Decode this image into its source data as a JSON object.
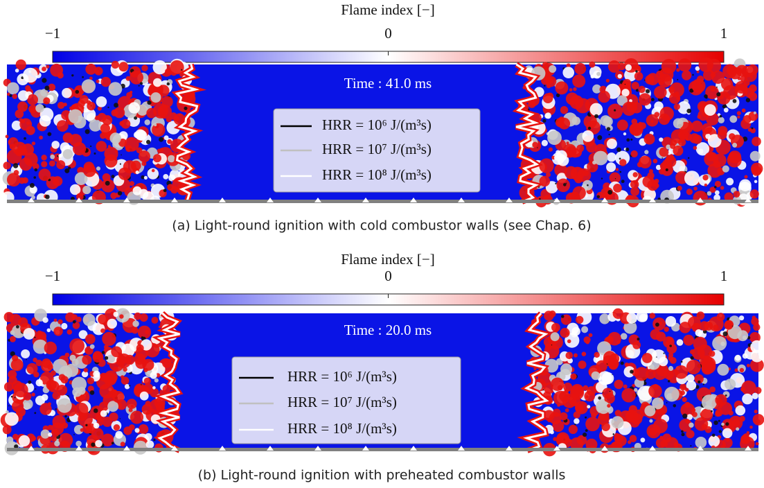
{
  "panels": [
    {
      "colorbar": {
        "title": "Flame index [−]",
        "ticks": [
          "−1",
          "0",
          "1"
        ]
      },
      "time": "Time : 41.0 ms",
      "legend": [
        "HRR = 10⁶ J/(m³s)",
        "HRR = 10⁷ J/(m³s)",
        "HRR = 10⁸ J/(m³s)"
      ],
      "caption": "(a) Light-round ignition with cold combustor walls (see Chap. 6)"
    },
    {
      "colorbar": {
        "title": "Flame index [−]",
        "ticks": [
          "−1",
          "0",
          "1"
        ]
      },
      "time": "Time : 20.0 ms",
      "legend": [
        "HRR = 10⁶ J/(m³s)",
        "HRR = 10⁷ J/(m³s)",
        "HRR = 10⁸ J/(m³s)"
      ],
      "caption": "(b) Light-round ignition with preheated combustor walls"
    }
  ]
}
